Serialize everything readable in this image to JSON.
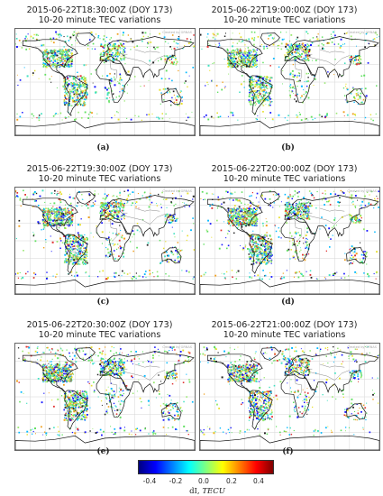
{
  "panels": [
    {
      "title": "2015-06-22T18:30:00Z (DOY 173)",
      "subtitle": "10-20 minute TEC variations",
      "label": "(a)",
      "credit": "Created by GRNAS"
    },
    {
      "title": "2015-06-22T19:00:00Z (DOY 173)",
      "subtitle": "10-20 minute TEC variations",
      "label": "(b)",
      "credit": "Created by GRNAS"
    },
    {
      "title": "2015-06-22T19:30:00Z (DOY 173)",
      "subtitle": "10-20 minute TEC variations",
      "label": "(c)",
      "credit": "Created by GRNAS"
    },
    {
      "title": "2015-06-22T20:00:00Z (DOY 173)",
      "subtitle": "10-20 minute TEC variations",
      "label": "(d)",
      "credit": "Created by GRNAS"
    },
    {
      "title": "2015-06-22T20:30:00Z (DOY 173)",
      "subtitle": "10-20 minute TEC variations",
      "label": "(e)",
      "credit": "Created by GRNAS"
    },
    {
      "title": "2015-06-22T21:00:00Z (DOY 173)",
      "subtitle": "10-20 minute TEC variations",
      "label": "(f)",
      "credit": "Created by GRNAS"
    }
  ],
  "colorbar": {
    "ticks": [
      "-0.4",
      "-0.2",
      "0.0",
      "0.2",
      "0.4"
    ],
    "label": "dI,",
    "unit": "TECU",
    "range": [
      -0.5,
      0.5
    ],
    "colors": [
      "#00007f",
      "#0000ff",
      "#0080ff",
      "#00ffff",
      "#80ff80",
      "#ffff00",
      "#ff8000",
      "#ff0000",
      "#7f0000"
    ]
  }
}
